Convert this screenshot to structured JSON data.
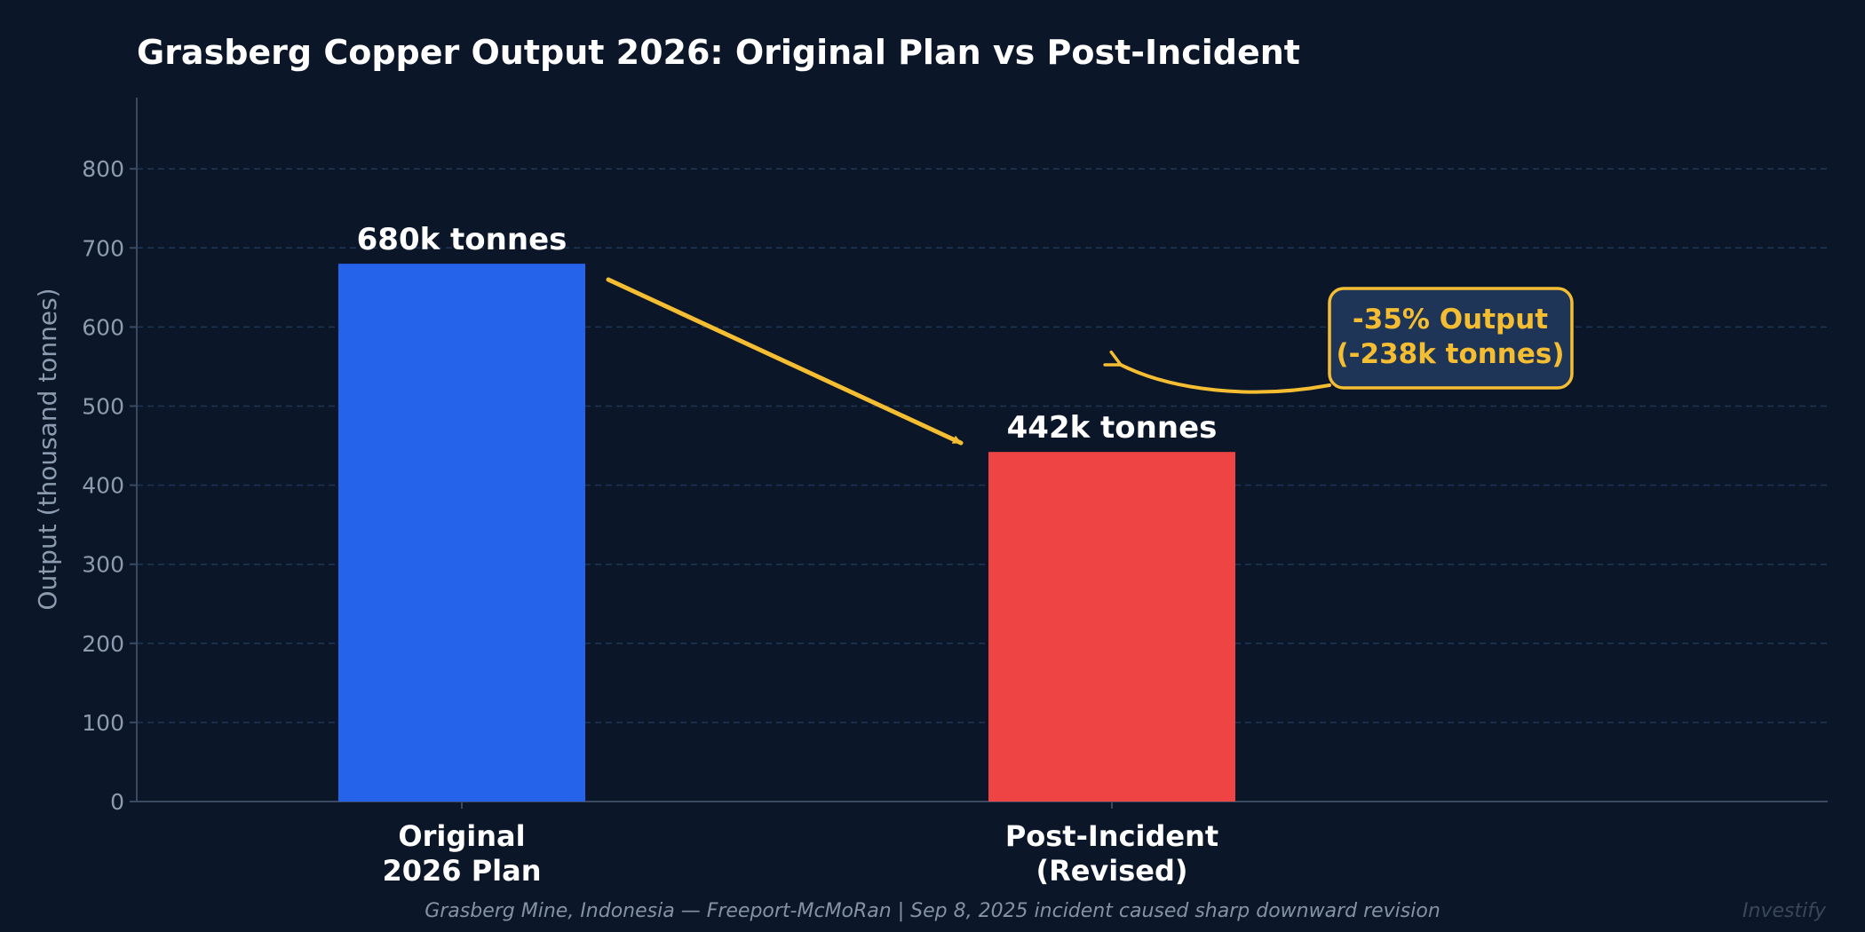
{
  "colors": {
    "background": "#0b1628",
    "grid": "#1f3556",
    "axis": "#3b4a60",
    "tick_text": "#8d9bb0",
    "original_bar": "#2563eb",
    "revised_bar": "#ef4444",
    "annotation": "#f5be32",
    "annotation_box": "#1e3558"
  },
  "chart_data": {
    "type": "bar",
    "title": "Grasberg Copper Output 2026: Original Plan vs Post-Incident",
    "ylabel": "Output (thousand tonnes)",
    "xlabel": "",
    "ylim": [
      0,
      890
    ],
    "yticks": [
      "0",
      "100",
      "200",
      "300",
      "400",
      "500",
      "600",
      "700",
      "800"
    ],
    "grid": true,
    "categories": [
      [
        "Original",
        "2026 Plan"
      ],
      [
        "Post-Incident",
        "(Revised)"
      ]
    ],
    "values": [
      680,
      442
    ],
    "bar_colors": [
      "#2563eb",
      "#ef4444"
    ],
    "data_labels": [
      "680k tonnes",
      "442k tonnes"
    ],
    "annotation": {
      "lines": [
        "-35% Output",
        "(-238k tonnes)"
      ]
    }
  },
  "footer": "Grasberg Mine, Indonesia — Freeport-McMoRan | Sep 8, 2025 incident caused sharp downward revision",
  "watermark": "Investify"
}
